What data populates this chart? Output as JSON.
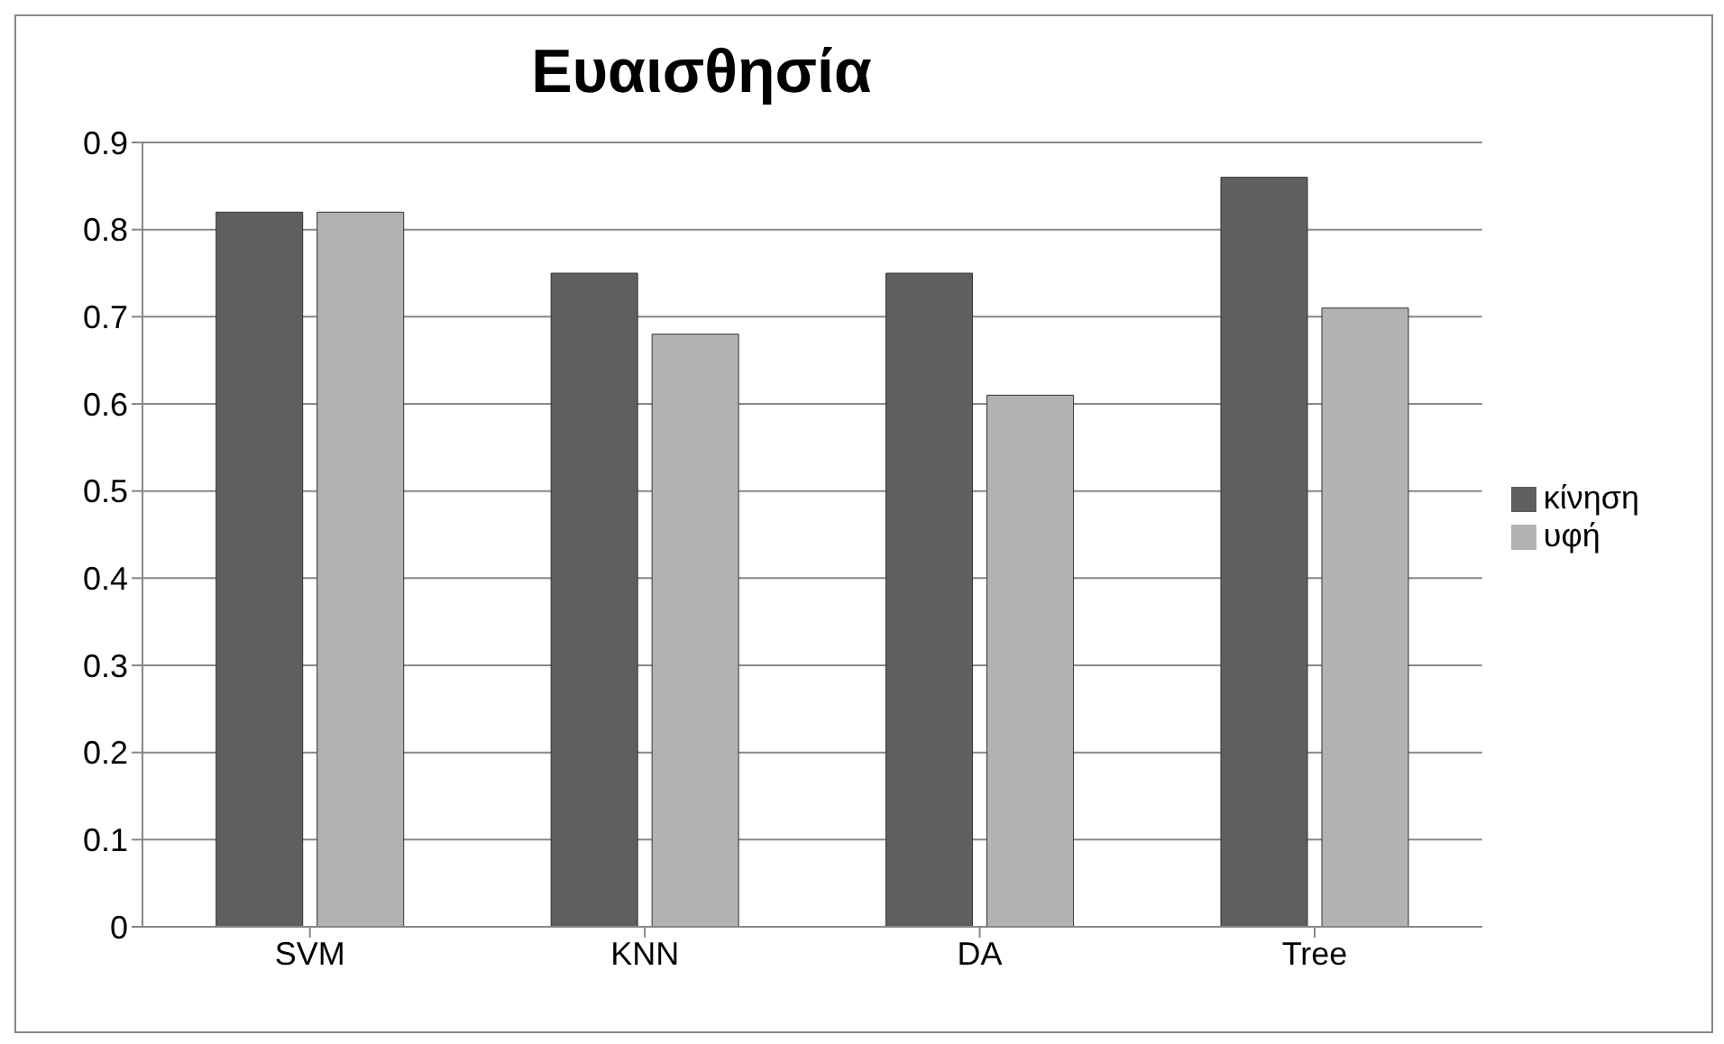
{
  "chart_data": {
    "type": "bar",
    "title": "Ευαισθησία",
    "categories": [
      "SVM",
      "KNN",
      "DA",
      "Tree"
    ],
    "series": [
      {
        "name": "κίνηση",
        "color": "#5f5f5f",
        "values": [
          0.82,
          0.75,
          0.75,
          0.86
        ]
      },
      {
        "name": "υφή",
        "color": "#b2b2b2",
        "values": [
          0.82,
          0.68,
          0.61,
          0.71
        ]
      }
    ],
    "ylim": [
      0,
      0.9
    ],
    "yticks": [
      0,
      0.1,
      0.2,
      0.3,
      0.4,
      0.5,
      0.6,
      0.7,
      0.8,
      0.9
    ],
    "grid": "y",
    "legend": "right"
  }
}
